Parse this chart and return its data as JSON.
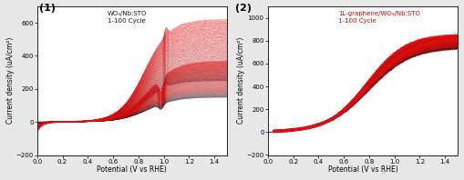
{
  "fig_width": 5.09,
  "fig_height": 1.98,
  "dpi": 100,
  "background_color": "#e8e8e8",
  "panel1": {
    "label": "(1)",
    "xlabel": "Potential (V vs RHE)",
    "ylabel": "Current density (uA/cm²)",
    "xlim": [
      0.0,
      1.5
    ],
    "ylim": [
      -200,
      700
    ],
    "yticks": [
      -200,
      0,
      200,
      400,
      600
    ],
    "xticks": [
      0.0,
      0.2,
      0.4,
      0.6,
      0.8,
      1.0,
      1.2,
      1.4
    ],
    "annotation": "WO₃/Nb:STO\n1-100 Cycle",
    "annotation_color": "#1a1a1a",
    "n_cycles": 100
  },
  "panel2": {
    "label": "(2)",
    "xlabel": "Potential (V vs RHE)",
    "ylabel": "Current density (uA/cm²)",
    "xlim": [
      0.0,
      1.5
    ],
    "ylim": [
      -200,
      1100
    ],
    "yticks": [
      -200,
      0,
      200,
      400,
      600,
      800,
      1000
    ],
    "xticks": [
      0.0,
      0.2,
      0.4,
      0.6,
      0.8,
      1.0,
      1.2,
      1.4
    ],
    "annotation": "1L-graphene/WO₃/Nb:STO\n1-100 Cycle",
    "annotation_color": "#cc0000",
    "n_cycles": 100
  }
}
